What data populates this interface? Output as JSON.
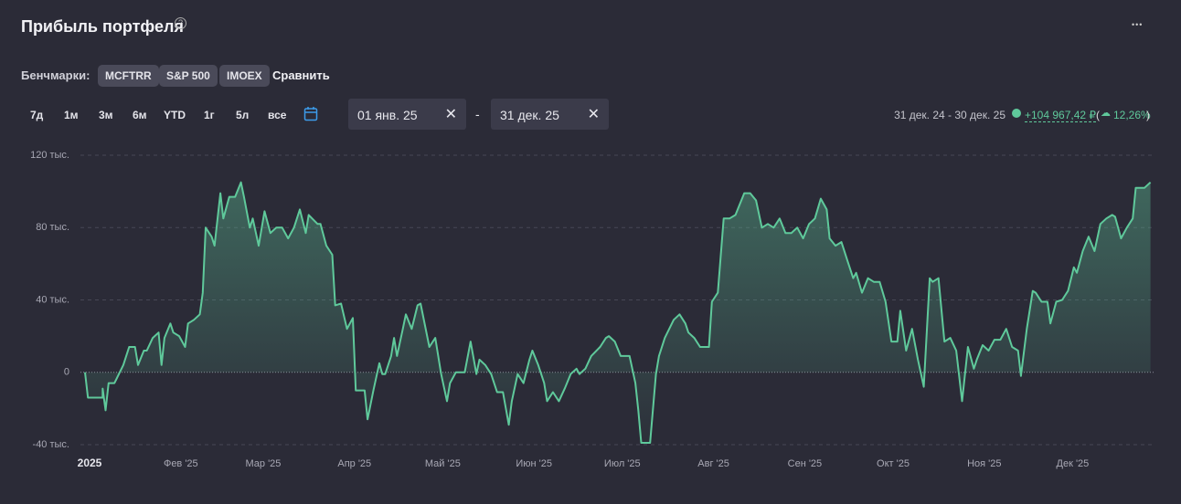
{
  "header": {
    "title": "Прибыль портфеля",
    "help": "?",
    "menu": "•••"
  },
  "benchmarks": {
    "label": "Бенчмарки:",
    "chips": [
      "MCFTRR",
      "S&P 500",
      "IMOEX"
    ],
    "compare": "Сравнить"
  },
  "periods": [
    "7д",
    "1м",
    "3м",
    "6м",
    "YTD",
    "1г",
    "5л",
    "все"
  ],
  "date_range": {
    "from": "01 янв. 25",
    "separator": "-",
    "to": "31 дек. 25"
  },
  "summary": {
    "range": "31 дек. 24 - 30 дек. 25",
    "profit": "+104 967,42 ₽",
    "paren_open": "(",
    "percent": "12,26%",
    "paren_close": ")"
  },
  "chart_data": {
    "type": "area",
    "color": "#5fc99b",
    "grid": true,
    "x": [
      0,
      1,
      6,
      6,
      7,
      8,
      10,
      13,
      15,
      17,
      18,
      20,
      21,
      23,
      25,
      26,
      27,
      29,
      30,
      32,
      34,
      35,
      37,
      39,
      40,
      41,
      43,
      44,
      46,
      47,
      49,
      51,
      53,
      54,
      56,
      57,
      59,
      61,
      63,
      65,
      67,
      69,
      71,
      73,
      75,
      76,
      79,
      80,
      82,
      84,
      85,
      87,
      89,
      91,
      92,
      95,
      96,
      98,
      100,
      101,
      102,
      104,
      105,
      106,
      108,
      109,
      111,
      113,
      114,
      117,
      119,
      121,
      123,
      124,
      126,
      129,
      131,
      133,
      134,
      136,
      138,
      140,
      142,
      144,
      145,
      147,
      149,
      151,
      152,
      154,
      156,
      157,
      159,
      161,
      163,
      165,
      167,
      168,
      170,
      172,
      175,
      177,
      178,
      180,
      182,
      185,
      187,
      188,
      189,
      192,
      194,
      195,
      197,
      200,
      202,
      204,
      205,
      207,
      209,
      212,
      213,
      215,
      217,
      219,
      221,
      224,
      226,
      228,
      230,
      232,
      234,
      236,
      238,
      240,
      242,
      244,
      246,
      248,
      250,
      252,
      253,
      255,
      257,
      259,
      261,
      262,
      264,
      266,
      268,
      270,
      272,
      274,
      276,
      277,
      279,
      281,
      283,
      285,
      287,
      288,
      290,
      292,
      294,
      296,
      298,
      300,
      302,
      303,
      305,
      307,
      309,
      311,
      313,
      315,
      317,
      318,
      320,
      322,
      323,
      325,
      327,
      328,
      330,
      332,
      334,
      336,
      337,
      339,
      341,
      343,
      345,
      347,
      349,
      350,
      352,
      354,
      356,
      357,
      360,
      362
    ],
    "series": [
      {
        "name": "Прибыль",
        "color": "#5fc99b",
        "values": [
          0,
          -14,
          -14,
          -9,
          -21,
          -6,
          -6,
          4,
          14,
          14,
          4,
          12,
          12,
          19,
          22,
          4,
          19,
          27,
          22,
          20,
          14,
          27,
          29,
          32,
          44,
          80,
          75,
          70,
          99,
          85,
          97,
          97,
          105,
          97,
          80,
          85,
          70,
          89,
          77,
          80,
          80,
          74,
          80,
          90,
          77,
          87,
          82,
          82,
          70,
          65,
          37,
          38,
          24,
          30,
          -10,
          -10,
          -26,
          -10,
          5,
          -1,
          -1,
          9,
          19,
          9,
          24,
          32,
          24,
          37,
          38,
          14,
          19,
          -1,
          -16,
          -6,
          0,
          0,
          17,
          -1,
          7,
          4,
          -1,
          -11,
          -11,
          -29,
          -16,
          -1,
          -6,
          7,
          12,
          4,
          -6,
          -16,
          -11,
          -16,
          -9,
          -1,
          2,
          -1,
          2,
          9,
          14,
          19,
          20,
          17,
          9,
          9,
          -6,
          -21,
          -39,
          -39,
          -1,
          9,
          19,
          29,
          32,
          27,
          22,
          19,
          14,
          14,
          39,
          44,
          85,
          85,
          87,
          99,
          99,
          95,
          80,
          82,
          80,
          85,
          77,
          77,
          80,
          74,
          82,
          85,
          96,
          90,
          74,
          70,
          72,
          62,
          52,
          55,
          44,
          52,
          50,
          50,
          39,
          17,
          17,
          34,
          12,
          24,
          7,
          -8,
          52,
          50,
          52,
          17,
          19,
          12,
          -16,
          14,
          2,
          7,
          15,
          12,
          18,
          18,
          24,
          14,
          12,
          -2,
          24,
          45,
          44,
          39,
          39,
          27,
          39,
          40,
          45,
          58,
          55,
          67,
          75,
          67,
          82,
          85,
          87,
          86,
          74,
          80,
          85,
          102,
          102,
          105
        ]
      }
    ],
    "xlim": [
      0,
      364
    ],
    "xticks": [
      {
        "value": 0,
        "label": "2025"
      },
      {
        "value": 31,
        "label": "Фев '25"
      },
      {
        "value": 59,
        "label": "Мар '25"
      },
      {
        "value": 90,
        "label": "Апр '25"
      },
      {
        "value": 120,
        "label": "Май '25"
      },
      {
        "value": 151,
        "label": "Июн '25"
      },
      {
        "value": 181,
        "label": "Июл '25"
      },
      {
        "value": 212,
        "label": "Авг '25"
      },
      {
        "value": 243,
        "label": "Сен '25"
      },
      {
        "value": 273,
        "label": "Окт '25"
      },
      {
        "value": 304,
        "label": "Ноя '25"
      },
      {
        "value": 334,
        "label": "Дек '25"
      }
    ],
    "ylim": [
      -40,
      120
    ],
    "yticks": [
      {
        "value": -40,
        "label": "-40 тыс."
      },
      0,
      {
        "value": 40,
        "label": "40 тыс."
      },
      {
        "value": 80,
        "label": "80 тыс."
      },
      {
        "value": 120,
        "label": "120 тыс."
      }
    ]
  }
}
